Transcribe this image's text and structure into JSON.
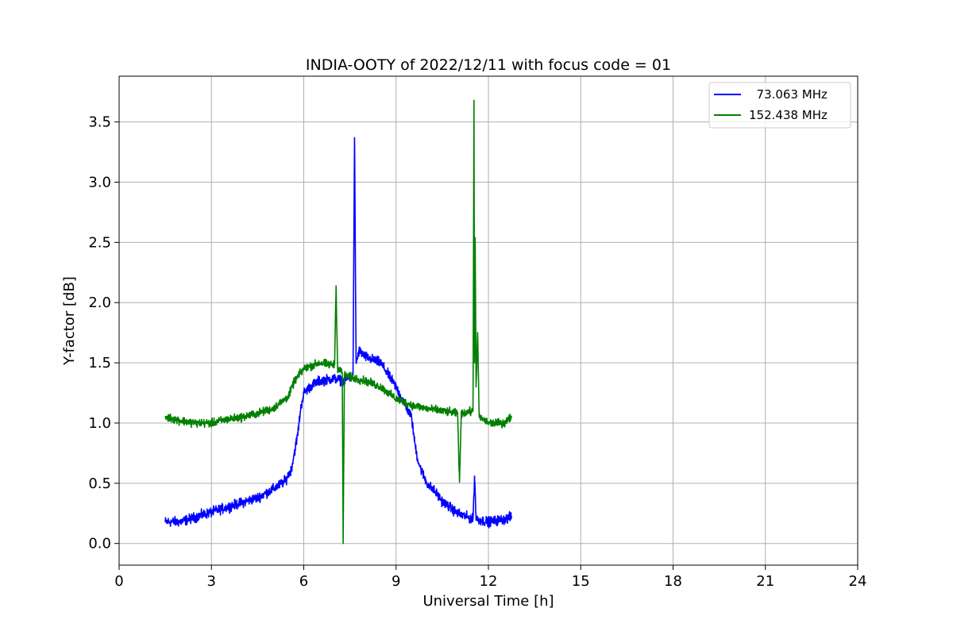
{
  "chart_data": {
    "type": "line",
    "title": "INDIA-OOTY of 2022/12/11 with focus code = 01",
    "xlabel": "Universal Time [h]",
    "ylabel": "Y-factor [dB]",
    "xlim": [
      0,
      24
    ],
    "ylim": [
      -0.18,
      3.88
    ],
    "xticks": [
      0,
      3,
      6,
      9,
      12,
      15,
      18,
      21,
      24
    ],
    "yticks": [
      0.0,
      0.5,
      1.0,
      1.5,
      2.0,
      2.5,
      3.0,
      3.5
    ],
    "xtick_labels": [
      "0",
      "3",
      "6",
      "9",
      "12",
      "15",
      "18",
      "21",
      "24"
    ],
    "ytick_labels": [
      "0.0",
      "0.5",
      "1.0",
      "1.5",
      "2.0",
      "2.5",
      "3.0",
      "3.5"
    ],
    "grid": true,
    "legend_position": "top-right",
    "series": [
      {
        "name": "  73.063 MHz",
        "color": "#0000ff",
        "x": [
          1.5,
          2.0,
          2.5,
          3.0,
          3.5,
          4.0,
          4.5,
          5.0,
          5.4,
          5.6,
          5.8,
          5.9,
          6.0,
          6.2,
          6.5,
          7.0,
          7.3,
          7.5,
          7.6,
          7.65,
          7.7,
          7.75,
          7.8,
          8.0,
          8.5,
          9.0,
          9.3,
          9.5,
          9.6,
          9.7,
          9.8,
          10.0,
          10.3,
          10.5,
          11.0,
          11.5,
          11.55,
          11.6,
          12.0,
          12.5,
          12.75
        ],
        "y": [
          0.18,
          0.18,
          0.22,
          0.26,
          0.3,
          0.34,
          0.38,
          0.45,
          0.52,
          0.62,
          0.9,
          1.12,
          1.25,
          1.3,
          1.35,
          1.37,
          1.35,
          1.38,
          1.4,
          3.37,
          1.5,
          1.55,
          1.6,
          1.55,
          1.5,
          1.3,
          1.15,
          1.05,
          0.85,
          0.7,
          0.62,
          0.5,
          0.42,
          0.35,
          0.25,
          0.2,
          0.56,
          0.2,
          0.18,
          0.2,
          0.22
        ],
        "noise": 0.06
      },
      {
        "name": "152.438 MHz",
        "color": "#008000",
        "x": [
          1.5,
          2.0,
          2.5,
          3.0,
          3.5,
          4.0,
          4.5,
          5.0,
          5.5,
          5.7,
          6.0,
          6.5,
          7.0,
          7.05,
          7.1,
          7.25,
          7.28,
          7.32,
          7.5,
          8.0,
          8.5,
          9.0,
          9.5,
          10.0,
          10.5,
          11.0,
          11.06,
          11.12,
          11.5,
          11.53,
          11.55,
          11.57,
          11.6,
          11.65,
          11.7,
          12.0,
          12.5,
          12.75
        ],
        "y": [
          1.05,
          1.02,
          1.0,
          1.0,
          1.03,
          1.05,
          1.08,
          1.12,
          1.22,
          1.35,
          1.45,
          1.5,
          1.48,
          2.14,
          1.45,
          1.42,
          0.0,
          1.4,
          1.38,
          1.35,
          1.3,
          1.2,
          1.15,
          1.12,
          1.1,
          1.08,
          0.51,
          1.08,
          1.1,
          3.68,
          1.5,
          2.54,
          1.3,
          1.75,
          1.05,
          1.0,
          1.0,
          1.05
        ],
        "noise": 0.05
      }
    ]
  }
}
